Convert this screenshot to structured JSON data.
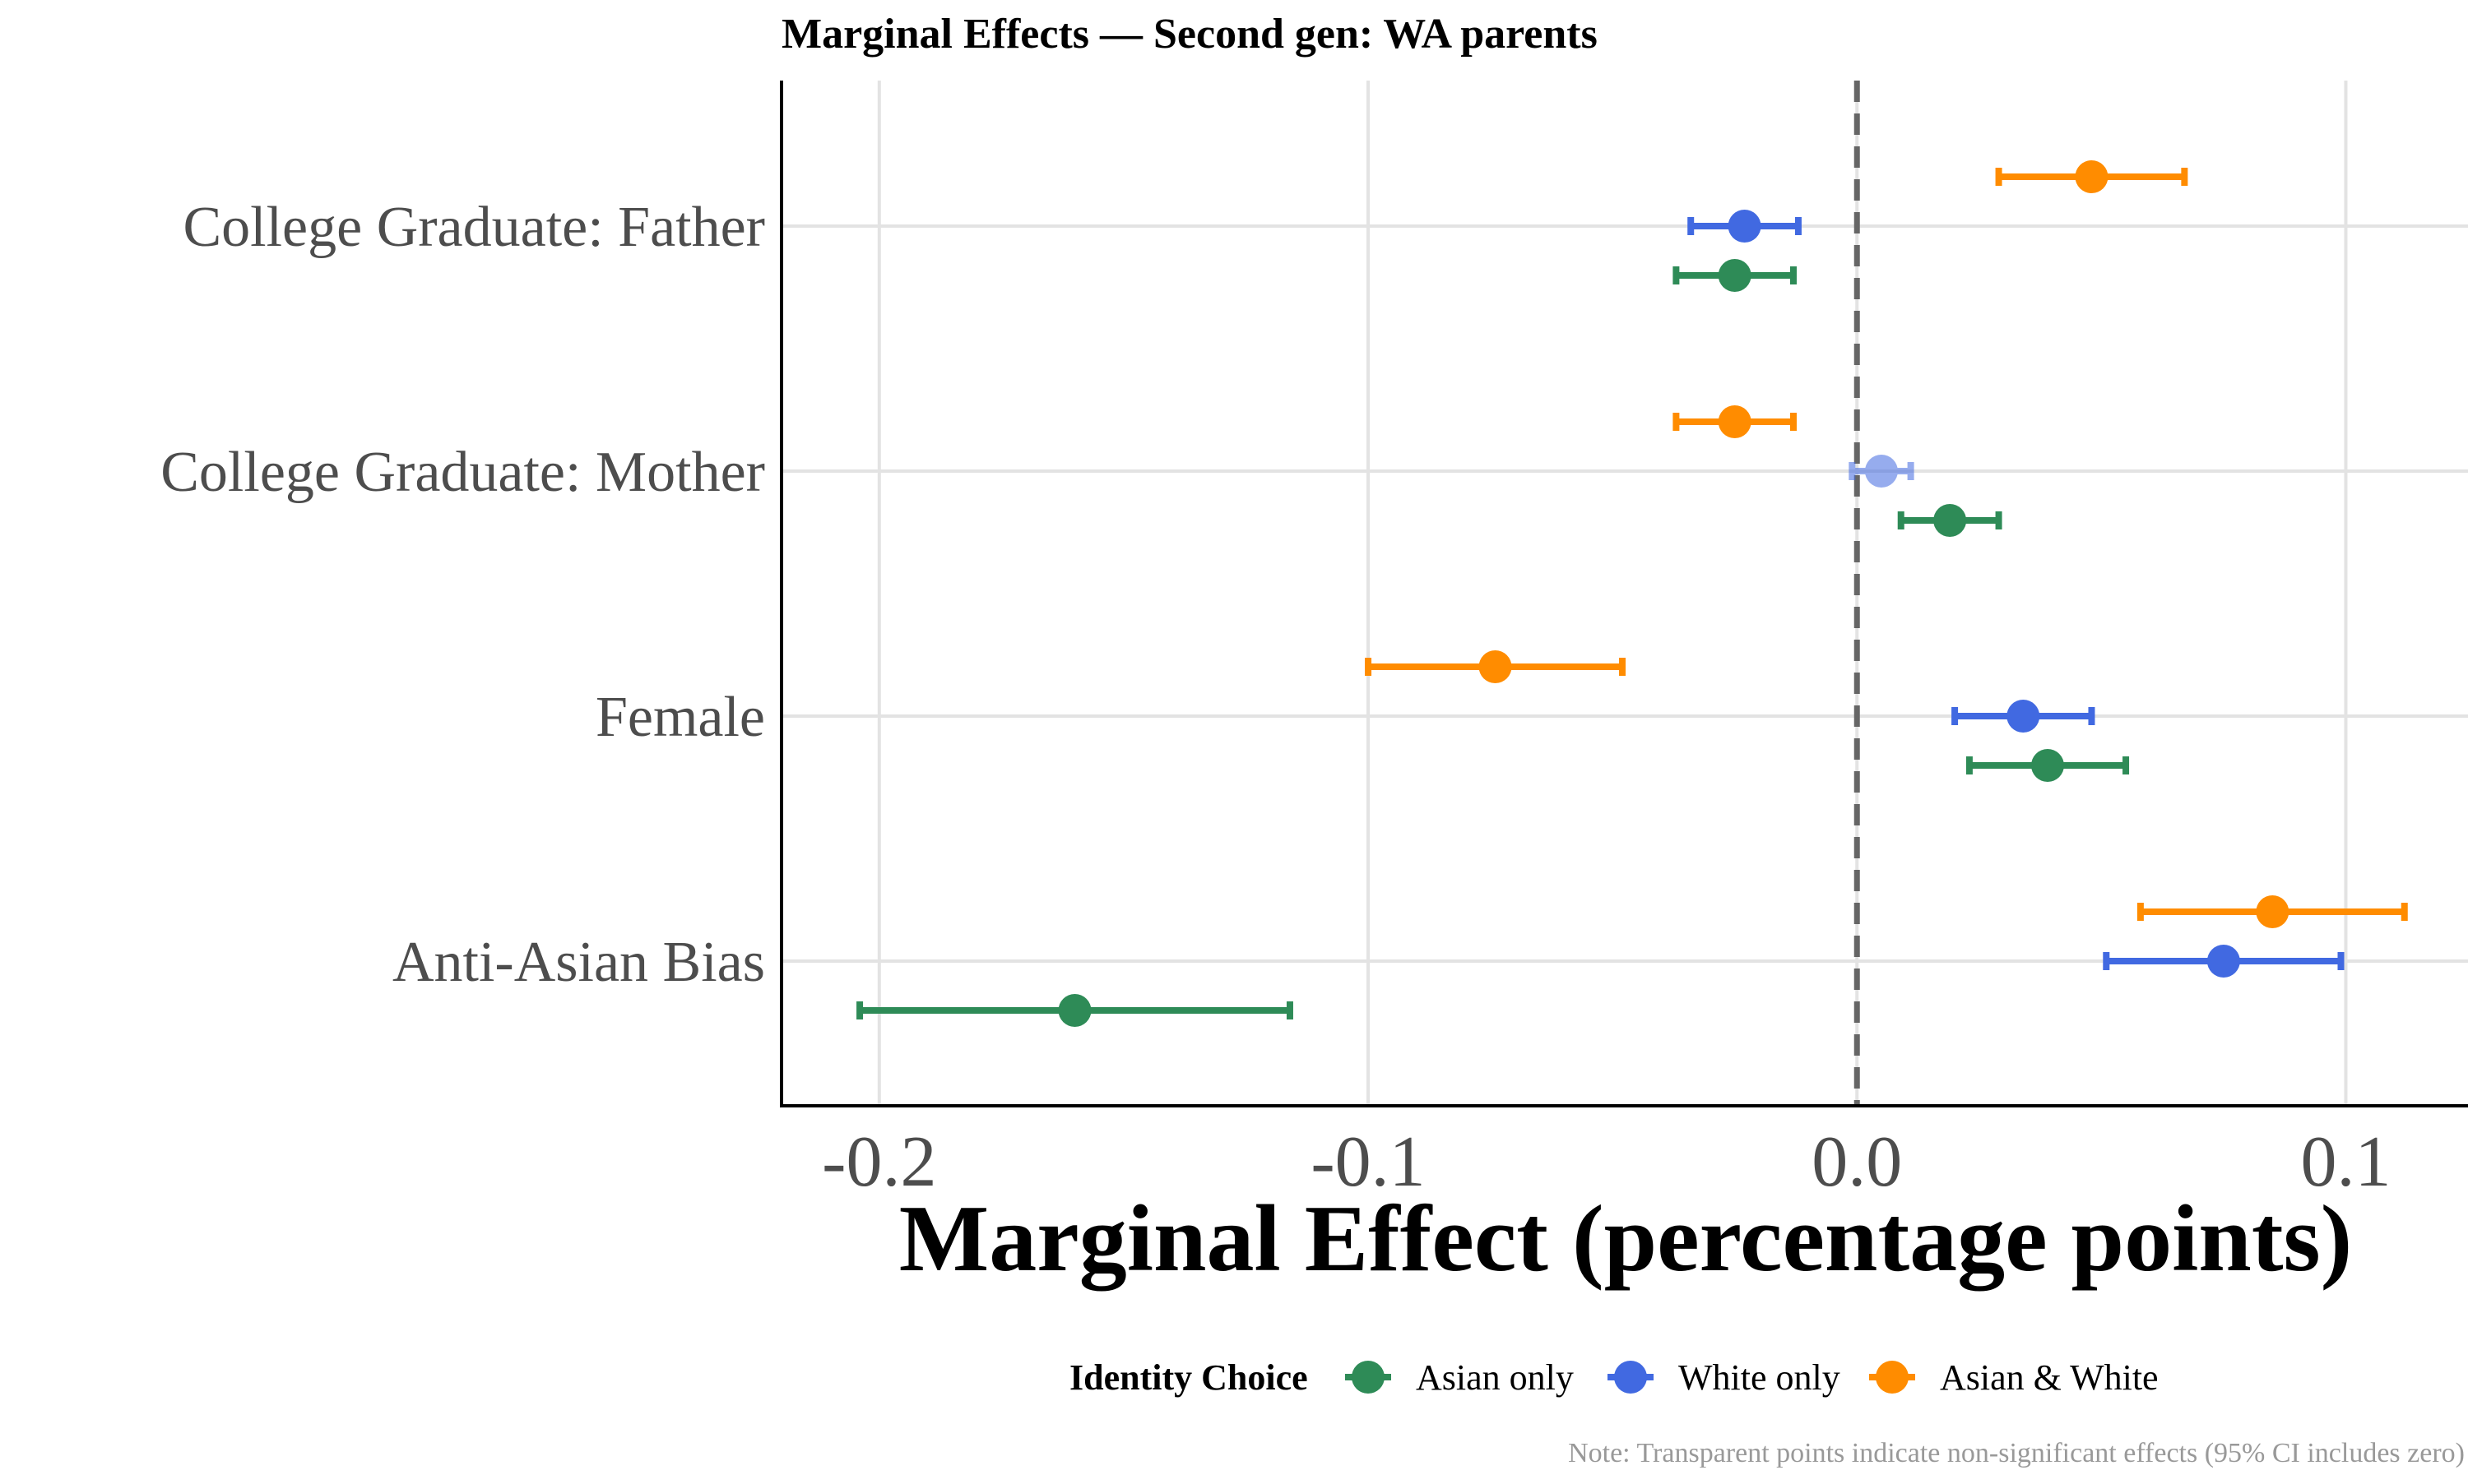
{
  "chart_data": {
    "type": "scatter",
    "subtype": "dot-and-whisker",
    "title": "Marginal Effects — Second gen: WA parents",
    "xlabel": "Marginal Effect (percentage points)",
    "ylabel": "",
    "xlim": [
      -0.22,
      0.125
    ],
    "x_ticks": [
      -0.2,
      -0.1,
      0.0,
      0.1
    ],
    "x_tick_labels": [
      "-0.2",
      "-0.1",
      "0.0",
      "0.1"
    ],
    "reference_line": 0,
    "grid": true,
    "categories": [
      "College Graduate: Father",
      "College Graduate: Mother",
      "Female",
      "Anti-Asian Bias"
    ],
    "legend": {
      "title": "Identity Choice",
      "position": "bottom"
    },
    "series": [
      {
        "name": "Asian only",
        "color": "#2e8b57",
        "points": [
          {
            "category": "College Graduate: Father",
            "estimate": -0.025,
            "ci_low": -0.037,
            "ci_high": -0.013,
            "significant": true
          },
          {
            "category": "College Graduate: Mother",
            "estimate": 0.019,
            "ci_low": 0.009,
            "ci_high": 0.029,
            "significant": true
          },
          {
            "category": "Female",
            "estimate": 0.039,
            "ci_low": 0.023,
            "ci_high": 0.055,
            "significant": true
          },
          {
            "category": "Anti-Asian Bias",
            "estimate": -0.16,
            "ci_low": -0.204,
            "ci_high": -0.116,
            "significant": true
          }
        ]
      },
      {
        "name": "White only",
        "color": "#4169e1",
        "points": [
          {
            "category": "College Graduate: Father",
            "estimate": -0.023,
            "ci_low": -0.034,
            "ci_high": -0.012,
            "significant": true
          },
          {
            "category": "College Graduate: Mother",
            "estimate": 0.005,
            "ci_low": -0.001,
            "ci_high": 0.011,
            "significant": false
          },
          {
            "category": "Female",
            "estimate": 0.034,
            "ci_low": 0.02,
            "ci_high": 0.048,
            "significant": true
          },
          {
            "category": "Anti-Asian Bias",
            "estimate": 0.075,
            "ci_low": 0.051,
            "ci_high": 0.099,
            "significant": true
          }
        ]
      },
      {
        "name": "Asian & White",
        "color": "#ff8c00",
        "points": [
          {
            "category": "College Graduate: Father",
            "estimate": 0.048,
            "ci_low": 0.029,
            "ci_high": 0.067,
            "significant": true
          },
          {
            "category": "College Graduate: Mother",
            "estimate": -0.025,
            "ci_low": -0.037,
            "ci_high": -0.013,
            "significant": true
          },
          {
            "category": "Female",
            "estimate": -0.074,
            "ci_low": -0.1,
            "ci_high": -0.048,
            "significant": true
          },
          {
            "category": "Anti-Asian Bias",
            "estimate": 0.085,
            "ci_low": 0.058,
            "ci_high": 0.112,
            "significant": true
          }
        ]
      }
    ],
    "note": "Note: Transparent points indicate non-significant effects (95% CI includes zero)"
  }
}
